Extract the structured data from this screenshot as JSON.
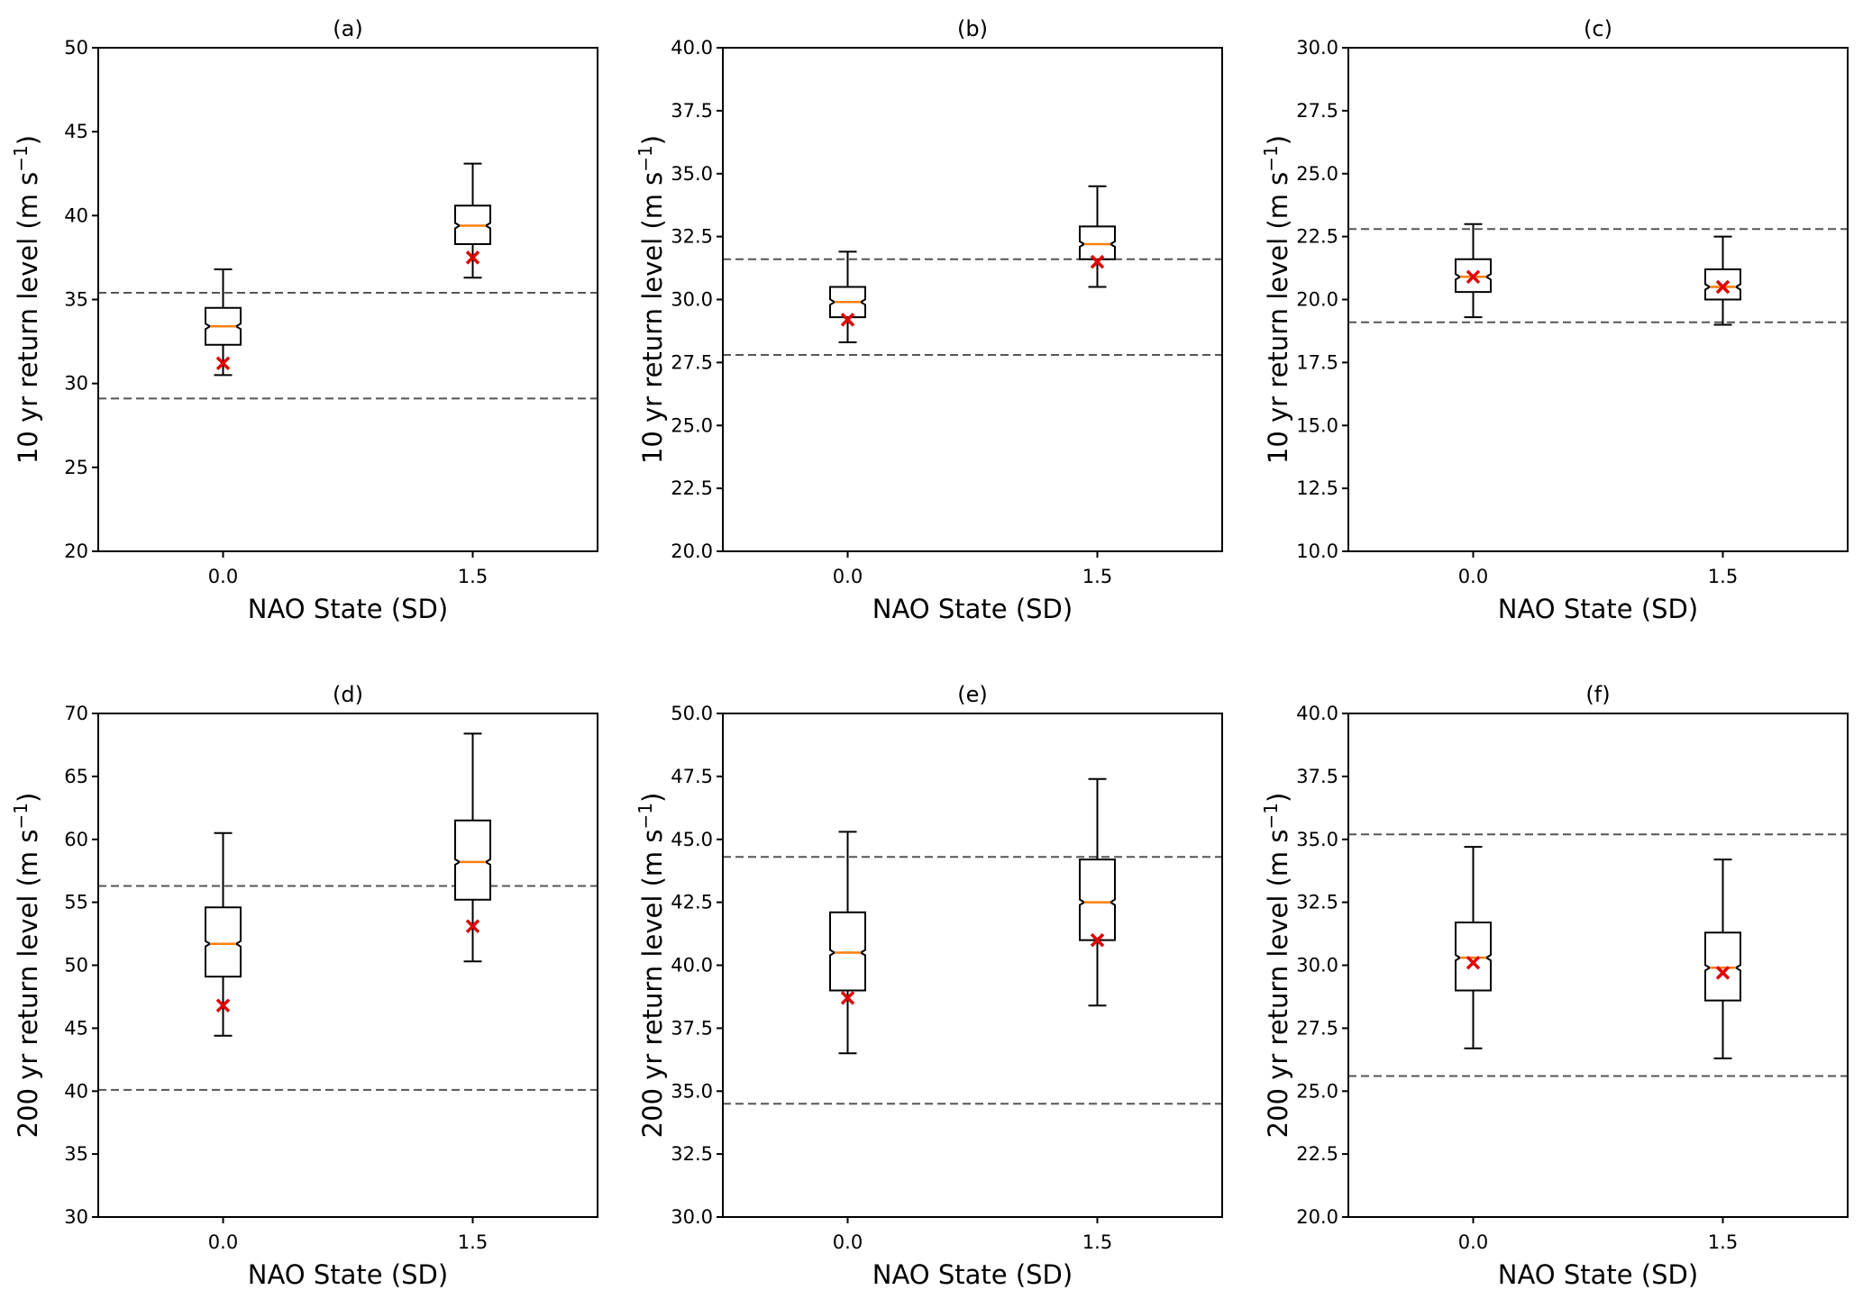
{
  "colors": {
    "box": "#000000",
    "median": "#ff7f0e",
    "marker": "#e00000",
    "dashed": "#555555"
  },
  "chart_data": [
    {
      "type": "box",
      "title": "(a)",
      "xlabel": "NAO State (SD)",
      "ylabel_main": "10 yr return level (m s",
      "ylabel_sup": "−1",
      "ylabel_close": ")",
      "ylim": [
        20,
        50
      ],
      "yticks": [
        20,
        25,
        30,
        35,
        40,
        45,
        50
      ],
      "ytick_labels": [
        "20",
        "25",
        "30",
        "35",
        "40",
        "45",
        "50"
      ],
      "categories": [
        "0.0",
        "1.5"
      ],
      "boxes": [
        {
          "whislo": 30.5,
          "q1": 32.3,
          "med": 33.4,
          "q3": 34.5,
          "whishi": 36.8,
          "marker": 31.2
        },
        {
          "whislo": 36.3,
          "q1": 38.3,
          "med": 39.4,
          "q3": 40.6,
          "whishi": 43.1,
          "marker": 37.5
        }
      ],
      "hlines": [
        35.4,
        29.1
      ]
    },
    {
      "type": "box",
      "title": "(b)",
      "xlabel": "NAO State (SD)",
      "ylabel_main": "10 yr return level (m s",
      "ylabel_sup": "−1",
      "ylabel_close": ")",
      "ylim": [
        20,
        40
      ],
      "yticks": [
        20,
        22.5,
        25,
        27.5,
        30,
        32.5,
        35,
        37.5,
        40
      ],
      "ytick_labels": [
        "20.0",
        "22.5",
        "25.0",
        "27.5",
        "30.0",
        "32.5",
        "35.0",
        "37.5",
        "40.0"
      ],
      "categories": [
        "0.0",
        "1.5"
      ],
      "boxes": [
        {
          "whislo": 28.3,
          "q1": 29.3,
          "med": 29.9,
          "q3": 30.5,
          "whishi": 31.9,
          "marker": 29.2
        },
        {
          "whislo": 30.5,
          "q1": 31.6,
          "med": 32.2,
          "q3": 32.9,
          "whishi": 34.5,
          "marker": 31.5
        }
      ],
      "hlines": [
        31.6,
        27.8
      ]
    },
    {
      "type": "box",
      "title": "(c)",
      "xlabel": "NAO State (SD)",
      "ylabel_main": "10 yr return level (m s",
      "ylabel_sup": "−1",
      "ylabel_close": ")",
      "ylim": [
        10,
        30
      ],
      "yticks": [
        10,
        12.5,
        15,
        17.5,
        20,
        22.5,
        25,
        27.5,
        30
      ],
      "ytick_labels": [
        "10.0",
        "12.5",
        "15.0",
        "17.5",
        "20.0",
        "22.5",
        "25.0",
        "27.5",
        "30.0"
      ],
      "categories": [
        "0.0",
        "1.5"
      ],
      "boxes": [
        {
          "whislo": 19.3,
          "q1": 20.3,
          "med": 20.9,
          "q3": 21.6,
          "whishi": 23.0,
          "marker": 20.9
        },
        {
          "whislo": 19.0,
          "q1": 20.0,
          "med": 20.5,
          "q3": 21.2,
          "whishi": 22.5,
          "marker": 20.5
        }
      ],
      "hlines": [
        22.8,
        19.1
      ]
    },
    {
      "type": "box",
      "title": "(d)",
      "xlabel": "NAO State (SD)",
      "ylabel_main": "200 yr return level (m s",
      "ylabel_sup": "−1",
      "ylabel_close": ")",
      "ylim": [
        30,
        70
      ],
      "yticks": [
        30,
        35,
        40,
        45,
        50,
        55,
        60,
        65,
        70
      ],
      "ytick_labels": [
        "30",
        "35",
        "40",
        "45",
        "50",
        "55",
        "60",
        "65",
        "70"
      ],
      "categories": [
        "0.0",
        "1.5"
      ],
      "boxes": [
        {
          "whislo": 44.4,
          "q1": 49.1,
          "med": 51.7,
          "q3": 54.6,
          "whishi": 60.5,
          "marker": 46.8
        },
        {
          "whislo": 50.3,
          "q1": 55.2,
          "med": 58.2,
          "q3": 61.5,
          "whishi": 68.4,
          "marker": 53.1
        }
      ],
      "hlines": [
        56.3,
        40.1
      ]
    },
    {
      "type": "box",
      "title": "(e)",
      "xlabel": "NAO State (SD)",
      "ylabel_main": "200 yr return level (m s",
      "ylabel_sup": "−1",
      "ylabel_close": ")",
      "ylim": [
        30,
        50
      ],
      "yticks": [
        30,
        32.5,
        35,
        37.5,
        40,
        42.5,
        45,
        47.5,
        50
      ],
      "ytick_labels": [
        "30.0",
        "32.5",
        "35.0",
        "37.5",
        "40.0",
        "42.5",
        "45.0",
        "47.5",
        "50.0"
      ],
      "categories": [
        "0.0",
        "1.5"
      ],
      "boxes": [
        {
          "whislo": 36.5,
          "q1": 39.0,
          "med": 40.5,
          "q3": 42.1,
          "whishi": 45.3,
          "marker": 38.7
        },
        {
          "whislo": 38.4,
          "q1": 41.0,
          "med": 42.5,
          "q3": 44.2,
          "whishi": 47.4,
          "marker": 41.0
        }
      ],
      "hlines": [
        44.3,
        34.5
      ]
    },
    {
      "type": "box",
      "title": "(f)",
      "xlabel": "NAO State (SD)",
      "ylabel_main": "200 yr return level (m s",
      "ylabel_sup": "−1",
      "ylabel_close": ")",
      "ylim": [
        20,
        40
      ],
      "yticks": [
        20,
        22.5,
        25,
        27.5,
        30,
        32.5,
        35,
        37.5,
        40
      ],
      "ytick_labels": [
        "20.0",
        "22.5",
        "25.0",
        "27.5",
        "30.0",
        "32.5",
        "35.0",
        "37.5",
        "40.0"
      ],
      "categories": [
        "0.0",
        "1.5"
      ],
      "boxes": [
        {
          "whislo": 26.7,
          "q1": 29.0,
          "med": 30.3,
          "q3": 31.7,
          "whishi": 34.7,
          "marker": 30.1
        },
        {
          "whislo": 26.3,
          "q1": 28.6,
          "med": 29.9,
          "q3": 31.3,
          "whishi": 34.2,
          "marker": 29.7
        }
      ],
      "hlines": [
        35.2,
        25.6
      ]
    }
  ]
}
